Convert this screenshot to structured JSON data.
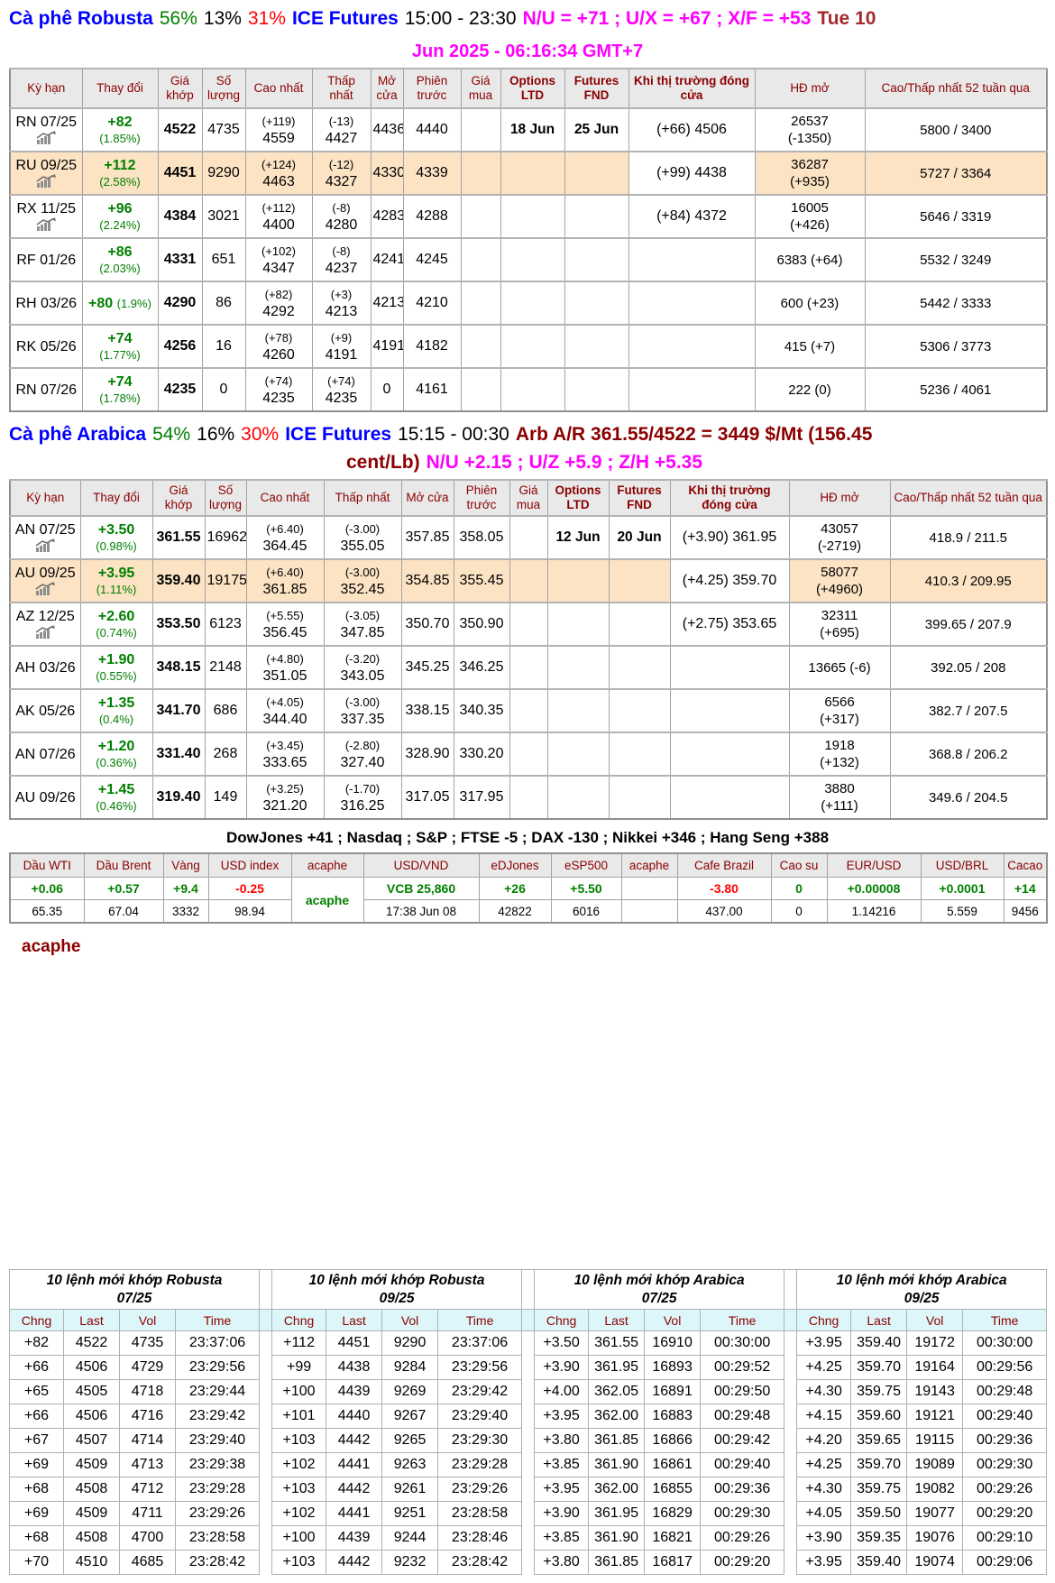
{
  "colors": {
    "accent_blue": "#0000FF",
    "positive_green": "#008000",
    "negative_red": "#FF0000",
    "magenta": "#FF00FF",
    "dark_red": "#8B0000",
    "row_highlight": "#FBE3C4",
    "table_header_bg": "#E9E9E9",
    "order_header_bg": "#DDF6F9"
  },
  "icons": {
    "contract_chart": "mini-bar-chart-rising-arrow-icon"
  },
  "header": {
    "robusta": {
      "title": "Cà phê Robusta",
      "pct_green": "56%",
      "pct_mid": "13%",
      "pct_red": "31%",
      "exchange": "ICE Futures",
      "hours": "15:00 - 23:30",
      "spreads": "N/U = +71 ; U/X = +67 ; X/F = +53",
      "weekday": "Tue 10",
      "datetime": "Jun 2025 - 06:16:34 GMT+7"
    },
    "arabica": {
      "title": "Cà phê Arabica",
      "pct_green": "54%",
      "pct_mid": "16%",
      "pct_red": "30%",
      "exchange": "ICE Futures",
      "hours": "15:15 - 00:30",
      "arb_part1": "Arb A/R 361.55/4522 = 3449 $/Mt (156.45",
      "arb_part2": "cent/Lb)",
      "spreads": "N/U +2.15 ; U/Z +5.9 ; Z/H +5.35"
    }
  },
  "futures_columns": [
    "Kỳ hạn",
    "Thay đổi",
    "Giá khớp",
    "Số lượng",
    "Cao nhất",
    "Thấp nhất",
    "Mở cửa",
    "Phiên trước",
    "Giá mua",
    "Options LTD",
    "Futures FND",
    "Khi thị trường đóng cửa",
    "HĐ mở",
    "Cao/Thấp nhất 52 tuần qua"
  ],
  "robusta_rows": [
    {
      "contract": "RN 07/25",
      "icon": true,
      "hl": false,
      "change": "+82",
      "pct": "(1.85%)",
      "wrap": true,
      "price": "4522",
      "vol": "4735",
      "high": "(+119)|4559",
      "low": "(-13)|4427",
      "open": "4436",
      "prev": "4440",
      "buy": "",
      "ltd": "18 Jun",
      "fnd": "25 Jun",
      "close": "(+66) 4506",
      "oi": "26537|(-1350)",
      "wk52": "5800 / 3400"
    },
    {
      "contract": "RU 09/25",
      "icon": true,
      "hl": true,
      "change": "+112",
      "pct": "(2.58%)",
      "wrap": true,
      "price": "4451",
      "vol": "9290",
      "high": "(+124)|4463",
      "low": "(-12)|4327",
      "open": "4330",
      "prev": "4339",
      "buy": "",
      "ltd": "",
      "fnd": "",
      "close": "(+99) 4438",
      "oi": "36287|(+935)",
      "wk52": "5727 / 3364"
    },
    {
      "contract": "RX 11/25",
      "icon": true,
      "hl": false,
      "change": "+96",
      "pct": "(2.24%)",
      "wrap": true,
      "price": "4384",
      "vol": "3021",
      "high": "(+112)|4400",
      "low": "(-8) 4280",
      "open": "4283",
      "prev": "4288",
      "buy": "",
      "ltd": "",
      "fnd": "",
      "close": "(+84) 4372",
      "oi": "16005|(+426)",
      "wk52": "5646 / 3319"
    },
    {
      "contract": "RF 01/26",
      "icon": false,
      "hl": false,
      "change": "+86",
      "pct": "(2.03%)",
      "wrap": true,
      "price": "4331",
      "vol": "651",
      "high": "(+102)|4347",
      "low": "(-8) 4237",
      "open": "4241",
      "prev": "4245",
      "buy": "",
      "ltd": "",
      "fnd": "",
      "close": "",
      "oi": "6383 (+64)",
      "wk52": "5532 / 3249"
    },
    {
      "contract": "RH 03/26",
      "icon": false,
      "hl": false,
      "change": "+80",
      "pct": "(1.9%)",
      "wrap": false,
      "price": "4290",
      "vol": "86",
      "high": "(+82)|4292",
      "low": "(+3)|4213",
      "open": "4213",
      "prev": "4210",
      "buy": "",
      "ltd": "",
      "fnd": "",
      "close": "",
      "oi": "600 (+23)",
      "wk52": "5442 / 3333"
    },
    {
      "contract": "RK 05/26",
      "icon": false,
      "hl": false,
      "change": "+74",
      "pct": "(1.77%)",
      "wrap": true,
      "price": "4256",
      "vol": "16",
      "high": "(+78)|4260",
      "low": "(+9)|4191",
      "open": "4191",
      "prev": "4182",
      "buy": "",
      "ltd": "",
      "fnd": "",
      "close": "",
      "oi": "415 (+7)",
      "wk52": "5306 / 3773"
    },
    {
      "contract": "RN 07/26",
      "icon": false,
      "hl": false,
      "change": "+74",
      "pct": "(1.78%)",
      "wrap": true,
      "price": "4235",
      "vol": "0",
      "high": "(+74)|4235",
      "low": "(+74)|4235",
      "open": "0",
      "prev": "4161",
      "buy": "",
      "ltd": "",
      "fnd": "",
      "close": "",
      "oi": "222 (0)",
      "wk52": "5236 / 4061"
    }
  ],
  "arabica_rows": [
    {
      "contract": "AN 07/25",
      "icon": true,
      "hl": false,
      "change": "+3.50",
      "pct": "(0.98%)",
      "wrap": true,
      "price": "361.55",
      "vol": "16962",
      "high": "(+6.40)|364.45",
      "low": "(-3.00)|355.05",
      "open": "357.85",
      "prev": "358.05",
      "buy": "",
      "ltd": "12 Jun",
      "fnd": "20 Jun",
      "close": "(+3.90) 361.95",
      "oi": "43057|(-2719)",
      "wk52": "418.9 / 211.5"
    },
    {
      "contract": "AU 09/25",
      "icon": true,
      "hl": true,
      "change": "+3.95",
      "pct": "(1.11%)",
      "wrap": true,
      "price": "359.40",
      "vol": "19175",
      "high": "(+6.40)|361.85",
      "low": "(-3.00)|352.45",
      "open": "354.85",
      "prev": "355.45",
      "buy": "",
      "ltd": "",
      "fnd": "",
      "close": "(+4.25) 359.70",
      "oi": "58077|(+4960)",
      "wk52": "410.3 / 209.95"
    },
    {
      "contract": "AZ 12/25",
      "icon": true,
      "hl": false,
      "change": "+2.60",
      "pct": "(0.74%)",
      "wrap": true,
      "price": "353.50",
      "vol": "6123",
      "high": "(+5.55)|356.45",
      "low": "(-3.05)|347.85",
      "open": "350.70",
      "prev": "350.90",
      "buy": "",
      "ltd": "",
      "fnd": "",
      "close": "(+2.75) 353.65",
      "oi": "32311|(+695)",
      "wk52": "399.65 / 207.9"
    },
    {
      "contract": "AH 03/26",
      "icon": false,
      "hl": false,
      "change": "+1.90",
      "pct": "(0.55%)",
      "wrap": true,
      "price": "348.15",
      "vol": "2148",
      "high": "(+4.80)|351.05",
      "low": "(-3.20)|343.05",
      "open": "345.25",
      "prev": "346.25",
      "buy": "",
      "ltd": "",
      "fnd": "",
      "close": "",
      "oi": "13665 (-6)",
      "wk52": "392.05 / 208"
    },
    {
      "contract": "AK 05/26",
      "icon": false,
      "hl": false,
      "change": "+1.35",
      "pct": "(0.4%)",
      "wrap": true,
      "price": "341.70",
      "vol": "686",
      "high": "(+4.05)|344.40",
      "low": "(-3.00)|337.35",
      "open": "338.15",
      "prev": "340.35",
      "buy": "",
      "ltd": "",
      "fnd": "",
      "close": "",
      "oi": "6566|(+317)",
      "wk52": "382.7 / 207.5"
    },
    {
      "contract": "AN 07/26",
      "icon": false,
      "hl": false,
      "change": "+1.20",
      "pct": "(0.36%)",
      "wrap": true,
      "price": "331.40",
      "vol": "268",
      "high": "(+3.45)|333.65",
      "low": "(-2.80)|327.40",
      "open": "328.90",
      "prev": "330.20",
      "buy": "",
      "ltd": "",
      "fnd": "",
      "close": "",
      "oi": "1918|(+132)",
      "wk52": "368.8 / 206.2"
    },
    {
      "contract": "AU 09/26",
      "icon": false,
      "hl": false,
      "change": "+1.45",
      "pct": "(0.46%)",
      "wrap": true,
      "price": "319.40",
      "vol": "149",
      "high": "(+3.25)|321.20",
      "low": "(-1.70)|316.25",
      "open": "317.05",
      "prev": "317.95",
      "buy": "",
      "ltd": "",
      "fnd": "",
      "close": "",
      "oi": "3880|(+111)",
      "wk52": "349.6 / 204.5"
    }
  ],
  "indices_line": "DowJones +41 ; Nasdaq ; S&P ; FTSE -5 ; DAX -130 ; Nikkei +346 ; Hang Seng +388",
  "market_strip": [
    {
      "label": "Dầu WTI",
      "change": "+0.06",
      "dir": "up",
      "value": "65.35"
    },
    {
      "label": "Dầu Brent",
      "change": "+0.57",
      "dir": "up",
      "value": "67.04"
    },
    {
      "label": "Vàng",
      "change": "+9.4",
      "dir": "up",
      "value": "3332"
    },
    {
      "label": "USD index",
      "change": "-0.25",
      "dir": "down",
      "value": "98.94"
    },
    {
      "label": "acaphe",
      "span_label": "acaphe"
    },
    {
      "label": "USD/VND",
      "change": "VCB 25,860",
      "dir": "up",
      "value": "17:38 Jun 08"
    },
    {
      "label": "eDJones",
      "change": "+26",
      "dir": "up",
      "value": "42822"
    },
    {
      "label": "eSP500",
      "change": "+5.50",
      "dir": "up",
      "value": "6016"
    },
    {
      "label": "acaphe",
      "change": "",
      "dir": "up",
      "value": ""
    },
    {
      "label": "Cafe Brazil",
      "change": "-3.80",
      "dir": "down",
      "value": "437.00"
    },
    {
      "label": "Cao su",
      "change": "0",
      "dir": "up",
      "value": "0"
    },
    {
      "label": "EUR/USD",
      "change": "+0.00008",
      "dir": "up",
      "value": "1.14216"
    },
    {
      "label": "USD/BRL",
      "change": "+0.0001",
      "dir": "up",
      "value": "5.559"
    },
    {
      "label": "Cacao",
      "change": "+14",
      "dir": "up",
      "value": "9456"
    }
  ],
  "acaphe_footer": "acaphe",
  "order_tables": [
    {
      "title": "10 lệnh mới khớp Robusta",
      "contract": "07/25",
      "columns": [
        "Chng",
        "Last",
        "Vol",
        "Time"
      ],
      "rows": [
        [
          "+82",
          "4522",
          "4735",
          "23:37:06"
        ],
        [
          "+66",
          "4506",
          "4729",
          "23:29:56"
        ],
        [
          "+65",
          "4505",
          "4718",
          "23:29:44"
        ],
        [
          "+66",
          "4506",
          "4716",
          "23:29:42"
        ],
        [
          "+67",
          "4507",
          "4714",
          "23:29:40"
        ],
        [
          "+69",
          "4509",
          "4713",
          "23:29:38"
        ],
        [
          "+68",
          "4508",
          "4712",
          "23:29:28"
        ],
        [
          "+69",
          "4509",
          "4711",
          "23:29:26"
        ],
        [
          "+68",
          "4508",
          "4700",
          "23:28:58"
        ],
        [
          "+70",
          "4510",
          "4685",
          "23:28:42"
        ]
      ]
    },
    {
      "title": "10 lệnh mới khớp Robusta",
      "contract": "09/25",
      "columns": [
        "Chng",
        "Last",
        "Vol",
        "Time"
      ],
      "rows": [
        [
          "+112",
          "4451",
          "9290",
          "23:37:06"
        ],
        [
          "+99",
          "4438",
          "9284",
          "23:29:56"
        ],
        [
          "+100",
          "4439",
          "9269",
          "23:29:42"
        ],
        [
          "+101",
          "4440",
          "9267",
          "23:29:40"
        ],
        [
          "+103",
          "4442",
          "9265",
          "23:29:30"
        ],
        [
          "+102",
          "4441",
          "9263",
          "23:29:28"
        ],
        [
          "+103",
          "4442",
          "9261",
          "23:29:26"
        ],
        [
          "+102",
          "4441",
          "9251",
          "23:28:58"
        ],
        [
          "+100",
          "4439",
          "9244",
          "23:28:46"
        ],
        [
          "+103",
          "4442",
          "9232",
          "23:28:42"
        ]
      ]
    },
    {
      "title": "10 lệnh mới khớp Arabica",
      "contract": "07/25",
      "columns": [
        "Chng",
        "Last",
        "Vol",
        "Time"
      ],
      "rows": [
        [
          "+3.50",
          "361.55",
          "16910",
          "00:30:00"
        ],
        [
          "+3.90",
          "361.95",
          "16893",
          "00:29:52"
        ],
        [
          "+4.00",
          "362.05",
          "16891",
          "00:29:50"
        ],
        [
          "+3.95",
          "362.00",
          "16883",
          "00:29:48"
        ],
        [
          "+3.80",
          "361.85",
          "16866",
          "00:29:42"
        ],
        [
          "+3.85",
          "361.90",
          "16861",
          "00:29:40"
        ],
        [
          "+3.95",
          "362.00",
          "16855",
          "00:29:36"
        ],
        [
          "+3.90",
          "361.95",
          "16829",
          "00:29:30"
        ],
        [
          "+3.85",
          "361.90",
          "16821",
          "00:29:26"
        ],
        [
          "+3.80",
          "361.85",
          "16817",
          "00:29:20"
        ]
      ]
    },
    {
      "title": "10 lệnh mới khớp Arabica",
      "contract": "09/25",
      "columns": [
        "Chng",
        "Last",
        "Vol",
        "Time"
      ],
      "rows": [
        [
          "+3.95",
          "359.40",
          "19172",
          "00:30:00"
        ],
        [
          "+4.25",
          "359.70",
          "19164",
          "00:29:56"
        ],
        [
          "+4.30",
          "359.75",
          "19143",
          "00:29:48"
        ],
        [
          "+4.15",
          "359.60",
          "19121",
          "00:29:40"
        ],
        [
          "+4.20",
          "359.65",
          "19115",
          "00:29:36"
        ],
        [
          "+4.25",
          "359.70",
          "19089",
          "00:29:30"
        ],
        [
          "+4.30",
          "359.75",
          "19082",
          "00:29:26"
        ],
        [
          "+4.05",
          "359.50",
          "19077",
          "00:29:20"
        ],
        [
          "+3.90",
          "359.35",
          "19076",
          "00:29:10"
        ],
        [
          "+3.95",
          "359.40",
          "19074",
          "00:29:06"
        ]
      ]
    }
  ]
}
